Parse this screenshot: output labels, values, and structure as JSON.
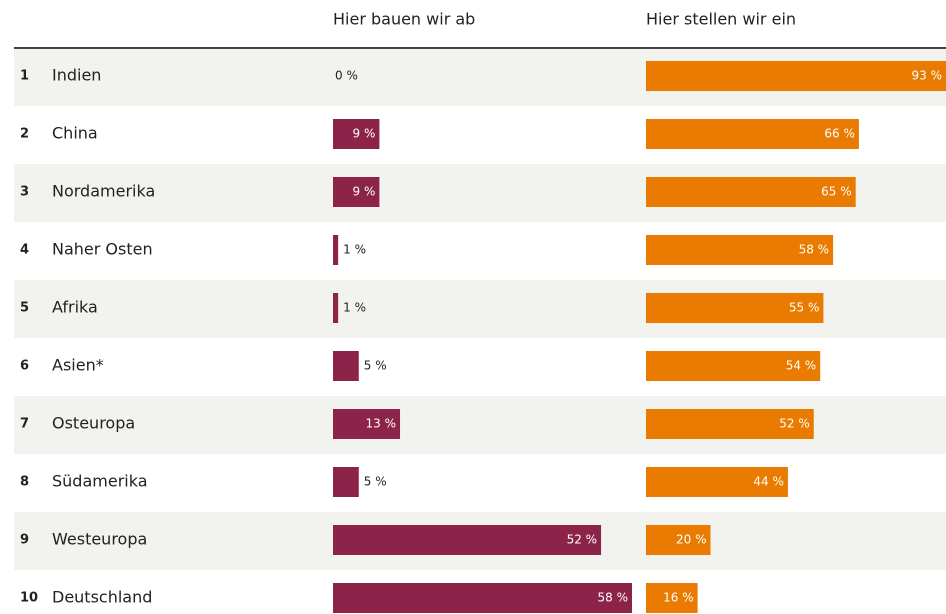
{
  "chart_data": {
    "type": "bar",
    "ranks": [
      "1",
      "2",
      "3",
      "4",
      "5",
      "6",
      "7",
      "8",
      "9",
      "10"
    ],
    "categories": [
      "Indien",
      "China",
      "Nordamerika",
      "Naher Osten",
      "Afrika",
      "Asien*",
      "Osteuropa",
      "Südamerika",
      "Westeuropa",
      "Deutschland"
    ],
    "series": [
      {
        "name": "Hier bauen wir ab",
        "color": "#8c2449",
        "values": [
          0,
          9,
          9,
          1,
          1,
          5,
          13,
          5,
          52,
          58
        ],
        "value_labels": [
          "0 %",
          "9 %",
          "9 %",
          "1 %",
          "1 %",
          "5 %",
          "13 %",
          "5 %",
          "52 %",
          "58 %"
        ]
      },
      {
        "name": "Hier stellen wir ein",
        "color": "#e87b00",
        "values": [
          93,
          66,
          65,
          58,
          55,
          54,
          52,
          44,
          20,
          16
        ],
        "value_labels": [
          "93 %",
          "66 %",
          "65 %",
          "58 %",
          "55 %",
          "54 %",
          "52 %",
          "44 %",
          "20 %",
          "16 %"
        ]
      }
    ]
  }
}
